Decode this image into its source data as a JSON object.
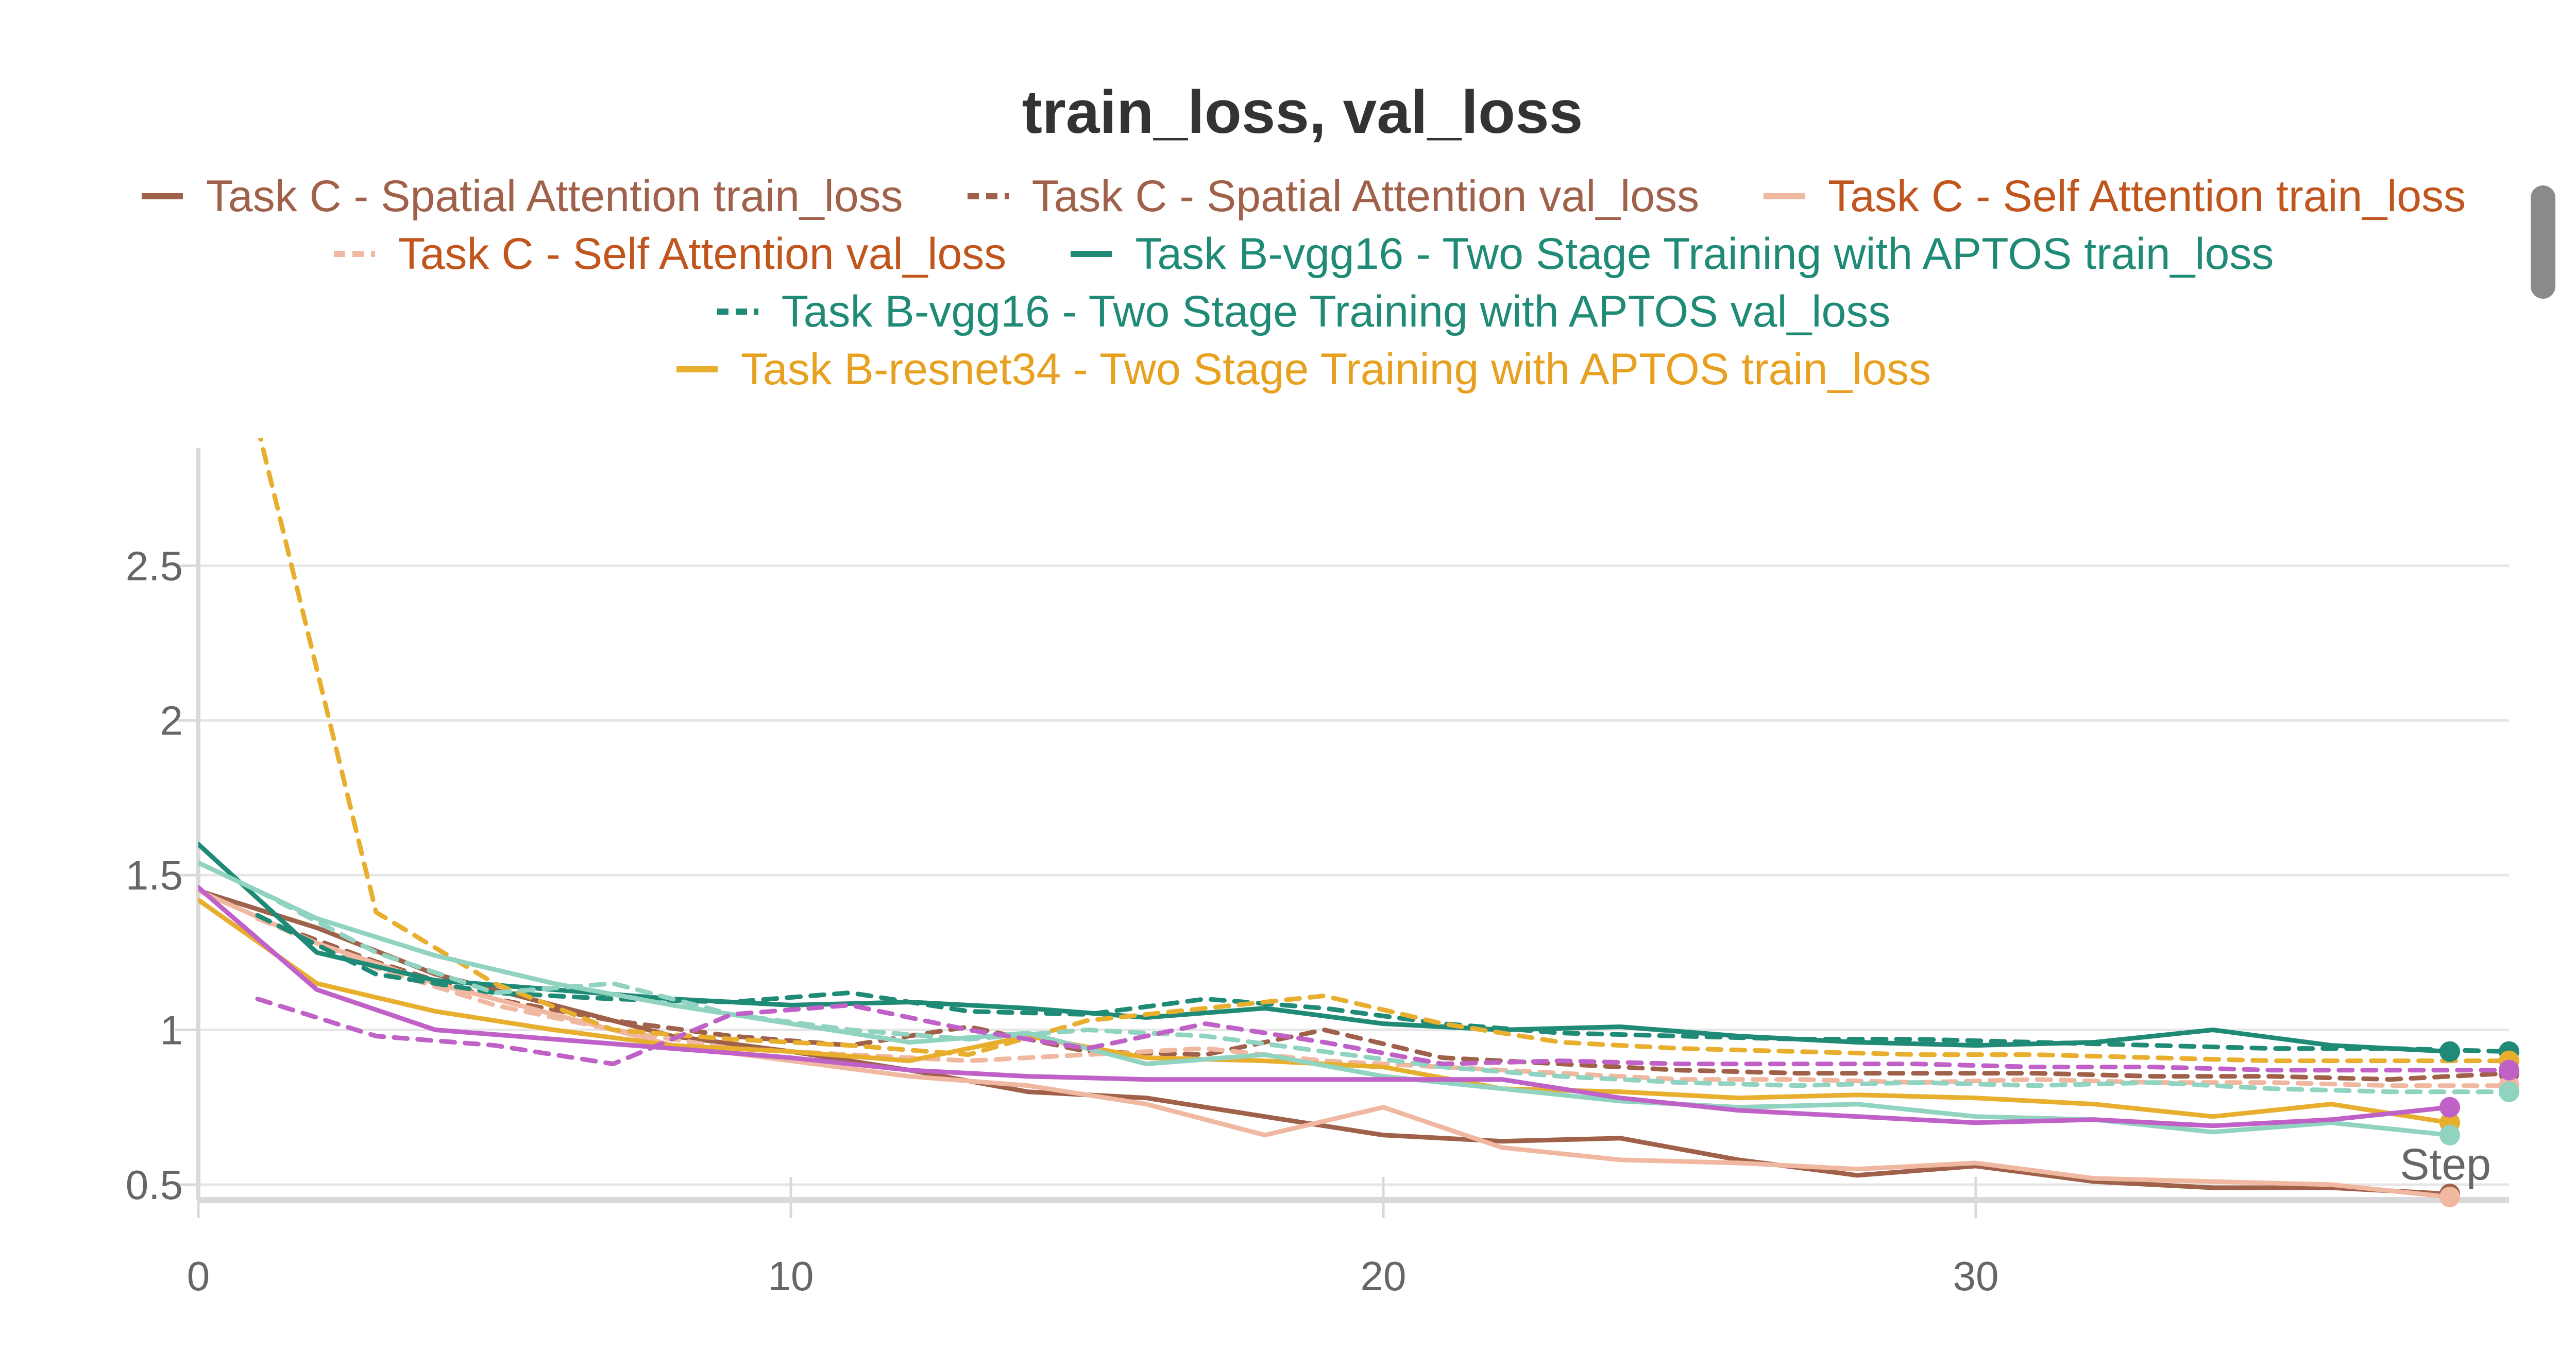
{
  "chart_data": {
    "type": "line",
    "title": "train_loss, val_loss",
    "xlabel": "Step",
    "ylabel": "",
    "xlim": [
      0,
      39
    ],
    "ylim": [
      0.45,
      2.88
    ],
    "xticks": [
      0,
      10,
      20,
      30
    ],
    "yticks": [
      0.5,
      1,
      1.5,
      2,
      2.5
    ],
    "xtick_labels": [
      "0",
      "10",
      "20",
      "30"
    ],
    "ytick_labels": [
      "0.5",
      "1",
      "1.5",
      "2",
      "2.5"
    ],
    "grid": true,
    "legend_position": "top",
    "series": [
      {
        "name": "Task C - Spatial Attention train_loss",
        "color": "#a0614a",
        "dash": false,
        "label_color": "#a0614a",
        "x": [
          0,
          2,
          4,
          6,
          8,
          10,
          12,
          14,
          16,
          18,
          20,
          22,
          24,
          26,
          28,
          30,
          32,
          34,
          36,
          38
        ],
        "y": [
          1.45,
          1.33,
          1.18,
          1.08,
          0.98,
          0.93,
          0.87,
          0.8,
          0.78,
          0.72,
          0.66,
          0.64,
          0.65,
          0.58,
          0.53,
          0.56,
          0.51,
          0.49,
          0.49,
          0.47
        ]
      },
      {
        "name": "Task C - Spatial Attention val_loss",
        "color": "#a0614a",
        "dash": true,
        "label_color": "#a0614a",
        "x": [
          1,
          3,
          5,
          7,
          9,
          11,
          13,
          15,
          17,
          19,
          21,
          23,
          25,
          27,
          29,
          31,
          33,
          35,
          37,
          39
        ],
        "y": [
          1.36,
          1.22,
          1.1,
          1.03,
          0.98,
          0.95,
          1.01,
          0.93,
          0.92,
          1.0,
          0.91,
          0.89,
          0.87,
          0.86,
          0.86,
          0.86,
          0.85,
          0.85,
          0.84,
          0.86
        ]
      },
      {
        "name": "Task C - Self Attention train_loss",
        "color": "#f0b8a0",
        "dash": false,
        "label_color": "#c0561e",
        "x": [
          0,
          2,
          4,
          6,
          8,
          10,
          12,
          14,
          16,
          18,
          20,
          22,
          24,
          26,
          28,
          30,
          32,
          34,
          36,
          38
        ],
        "y": [
          1.45,
          1.28,
          1.15,
          1.05,
          0.95,
          0.9,
          0.85,
          0.82,
          0.76,
          0.66,
          0.75,
          0.62,
          0.58,
          0.57,
          0.55,
          0.57,
          0.52,
          0.51,
          0.5,
          0.46
        ]
      },
      {
        "name": "Task C - Self Attention val_loss",
        "color": "#f0b8a0",
        "dash": true,
        "label_color": "#c0561e",
        "x": [
          1,
          3,
          5,
          7,
          9,
          11,
          13,
          15,
          17,
          19,
          21,
          23,
          25,
          27,
          29,
          31,
          33,
          35,
          37,
          39
        ],
        "y": [
          1.36,
          1.2,
          1.08,
          1.0,
          0.94,
          0.92,
          0.9,
          0.92,
          0.94,
          0.9,
          0.88,
          0.86,
          0.84,
          0.84,
          0.83,
          0.84,
          0.83,
          0.83,
          0.82,
          0.82
        ]
      },
      {
        "name": "Task B-vgg16 - Two Stage Training with APTOS train_loss",
        "color": "#1f8a76",
        "dash": false,
        "label_color": "#1f8a76",
        "x": [
          0,
          2,
          4,
          6,
          8,
          10,
          12,
          14,
          16,
          18,
          20,
          22,
          24,
          26,
          28,
          30,
          32,
          34,
          36,
          38
        ],
        "y": [
          1.6,
          1.25,
          1.16,
          1.13,
          1.1,
          1.08,
          1.09,
          1.07,
          1.04,
          1.07,
          1.02,
          1.0,
          1.01,
          0.98,
          0.96,
          0.95,
          0.96,
          1.0,
          0.95,
          0.93
        ]
      },
      {
        "name": "Task B-vgg16 - Two Stage Training with APTOS val_loss",
        "color": "#1f8a76",
        "dash": true,
        "label_color": "#1f8a76",
        "x": [
          1,
          3,
          5,
          7,
          9,
          11,
          13,
          15,
          17,
          19,
          21,
          23,
          25,
          27,
          29,
          31,
          33,
          35,
          37,
          39
        ],
        "y": [
          1.37,
          1.18,
          1.12,
          1.1,
          1.09,
          1.12,
          1.06,
          1.05,
          1.1,
          1.07,
          1.02,
          0.99,
          0.98,
          0.97,
          0.97,
          0.96,
          0.95,
          0.94,
          0.94,
          0.93
        ]
      },
      {
        "name": "Task B-resnet34 - Two Stage Training with APTOS train_loss",
        "color": "#e8ae2e",
        "dash": false,
        "label_color": "#e8a020",
        "x": [
          0,
          2,
          4,
          6,
          8,
          10,
          12,
          14,
          16,
          18,
          20,
          22,
          24,
          26,
          28,
          30,
          32,
          34,
          36,
          38
        ],
        "y": [
          1.42,
          1.15,
          1.06,
          1.0,
          0.95,
          0.93,
          0.9,
          0.98,
          0.91,
          0.9,
          0.88,
          0.81,
          0.8,
          0.78,
          0.79,
          0.78,
          0.76,
          0.72,
          0.76,
          0.7
        ]
      },
      {
        "name": "",
        "color": "#e8ae2e",
        "dash": true,
        "label_color": "#e8a020",
        "x": [
          1,
          3,
          5,
          7,
          9,
          11,
          13,
          15,
          17,
          19,
          21,
          23,
          25,
          27,
          29,
          31,
          33,
          35,
          37,
          39
        ],
        "y": [
          2.95,
          1.38,
          1.15,
          1.0,
          0.97,
          0.95,
          0.92,
          1.03,
          1.07,
          1.11,
          1.02,
          0.96,
          0.94,
          0.93,
          0.92,
          0.92,
          0.91,
          0.9,
          0.9,
          0.9
        ]
      },
      {
        "name": "",
        "color": "#8fd3c0",
        "dash": false,
        "label_color": "#8fd3c0",
        "x": [
          0,
          2,
          4,
          6,
          8,
          10,
          12,
          14,
          16,
          18,
          20,
          22,
          24,
          26,
          28,
          30,
          32,
          34,
          36,
          38
        ],
        "y": [
          1.54,
          1.36,
          1.24,
          1.15,
          1.08,
          1.02,
          0.96,
          0.99,
          0.89,
          0.92,
          0.85,
          0.81,
          0.77,
          0.75,
          0.76,
          0.72,
          0.71,
          0.67,
          0.7,
          0.66
        ]
      },
      {
        "name": "",
        "color": "#8fd3c0",
        "dash": true,
        "label_color": "#8fd3c0",
        "x": [
          1,
          3,
          5,
          7,
          9,
          11,
          13,
          15,
          17,
          19,
          21,
          23,
          25,
          27,
          29,
          31,
          33,
          35,
          37,
          39
        ],
        "y": [
          1.45,
          1.25,
          1.12,
          1.15,
          1.05,
          1.0,
          0.97,
          1.0,
          0.98,
          0.93,
          0.88,
          0.85,
          0.83,
          0.82,
          0.83,
          0.82,
          0.83,
          0.81,
          0.8,
          0.8
        ]
      },
      {
        "name": "",
        "color": "#c061c8",
        "dash": false,
        "label_color": "#c061c8",
        "x": [
          0,
          2,
          4,
          6,
          8,
          10,
          12,
          14,
          16,
          18,
          20,
          22,
          24,
          26,
          28,
          30,
          32,
          34,
          36,
          38
        ],
        "y": [
          1.46,
          1.13,
          1.0,
          0.97,
          0.94,
          0.91,
          0.87,
          0.85,
          0.84,
          0.84,
          0.84,
          0.84,
          0.78,
          0.74,
          0.72,
          0.7,
          0.71,
          0.69,
          0.71,
          0.75
        ]
      },
      {
        "name": "",
        "color": "#c061c8",
        "dash": true,
        "label_color": "#c061c8",
        "x": [
          1,
          3,
          5,
          7,
          9,
          11,
          13,
          15,
          17,
          19,
          21,
          23,
          25,
          27,
          29,
          31,
          33,
          35,
          37,
          39
        ],
        "y": [
          1.1,
          0.98,
          0.95,
          0.89,
          1.05,
          1.08,
          1.0,
          0.94,
          1.02,
          0.96,
          0.89,
          0.9,
          0.89,
          0.89,
          0.89,
          0.88,
          0.88,
          0.87,
          0.87,
          0.87
        ]
      }
    ]
  }
}
